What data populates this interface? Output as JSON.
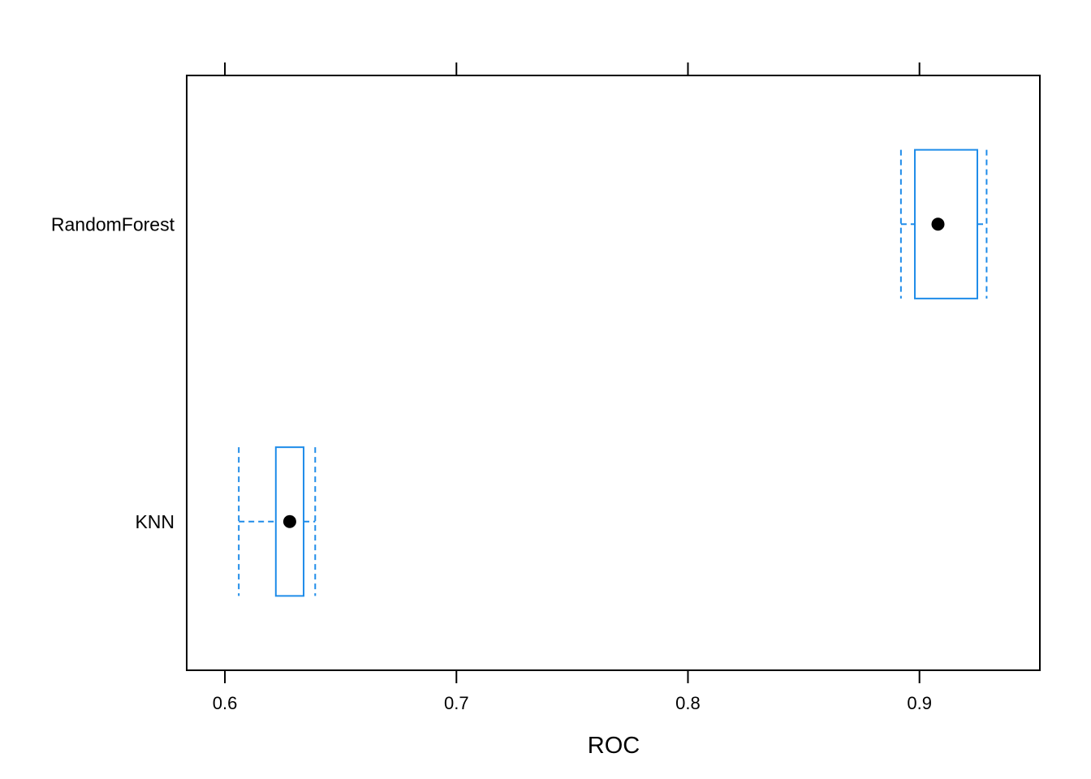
{
  "chart_data": {
    "type": "box",
    "orientation": "horizontal",
    "xlabel": "ROC",
    "ylabel": "",
    "xlim": [
      0.5835,
      0.952
    ],
    "x_ticks": [
      0.6,
      0.7,
      0.8,
      0.9
    ],
    "x_tick_labels": [
      "0.6",
      "0.7",
      "0.8",
      "0.9"
    ],
    "ticks_top": true,
    "grid": false,
    "legend": "none",
    "colors": {
      "box": "#1f8ce9",
      "median_dot": "#000000",
      "frame": "#000000"
    },
    "categories": [
      "KNN",
      "RandomForest"
    ],
    "boxes": [
      {
        "category": "KNN",
        "min": 0.606,
        "q1": 0.622,
        "median": 0.628,
        "q3": 0.634,
        "max": 0.639
      },
      {
        "category": "RandomForest",
        "min": 0.892,
        "q1": 0.898,
        "median": 0.908,
        "q3": 0.925,
        "max": 0.929
      }
    ]
  }
}
